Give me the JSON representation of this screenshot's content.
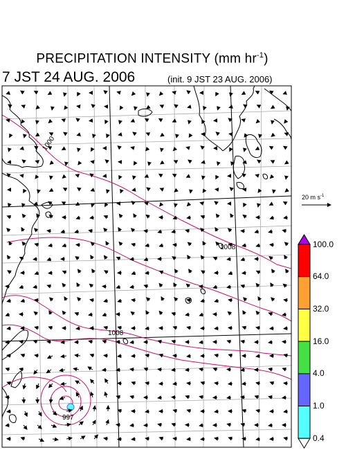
{
  "title": {
    "main": "PRECIPITATION INTENSITY (mm hr",
    "exp": "-1",
    "close": ")"
  },
  "valid_time": "7 JST 24 AUG. 2006",
  "init_time": "(init. 9 JST 23 AUG. 2006)",
  "wind_scale": {
    "label": "20 m s",
    "exp": "-1"
  },
  "isobar_labels": [
    "1000",
    "1008",
    "1008",
    "997"
  ],
  "colorbar": {
    "labels": [
      "100.0",
      "64.0",
      "32.0",
      "16.0",
      "4.0",
      "1.0",
      "0.4"
    ],
    "colors": [
      "#b000e8",
      "#ff0000",
      "#ffa033",
      "#ffff44",
      "#44e044",
      "#6666ff",
      "#55ffff",
      "#ffffff"
    ]
  },
  "colors": {
    "isobar": "#d0106a",
    "grid": "#999999",
    "coast": "#000000"
  }
}
